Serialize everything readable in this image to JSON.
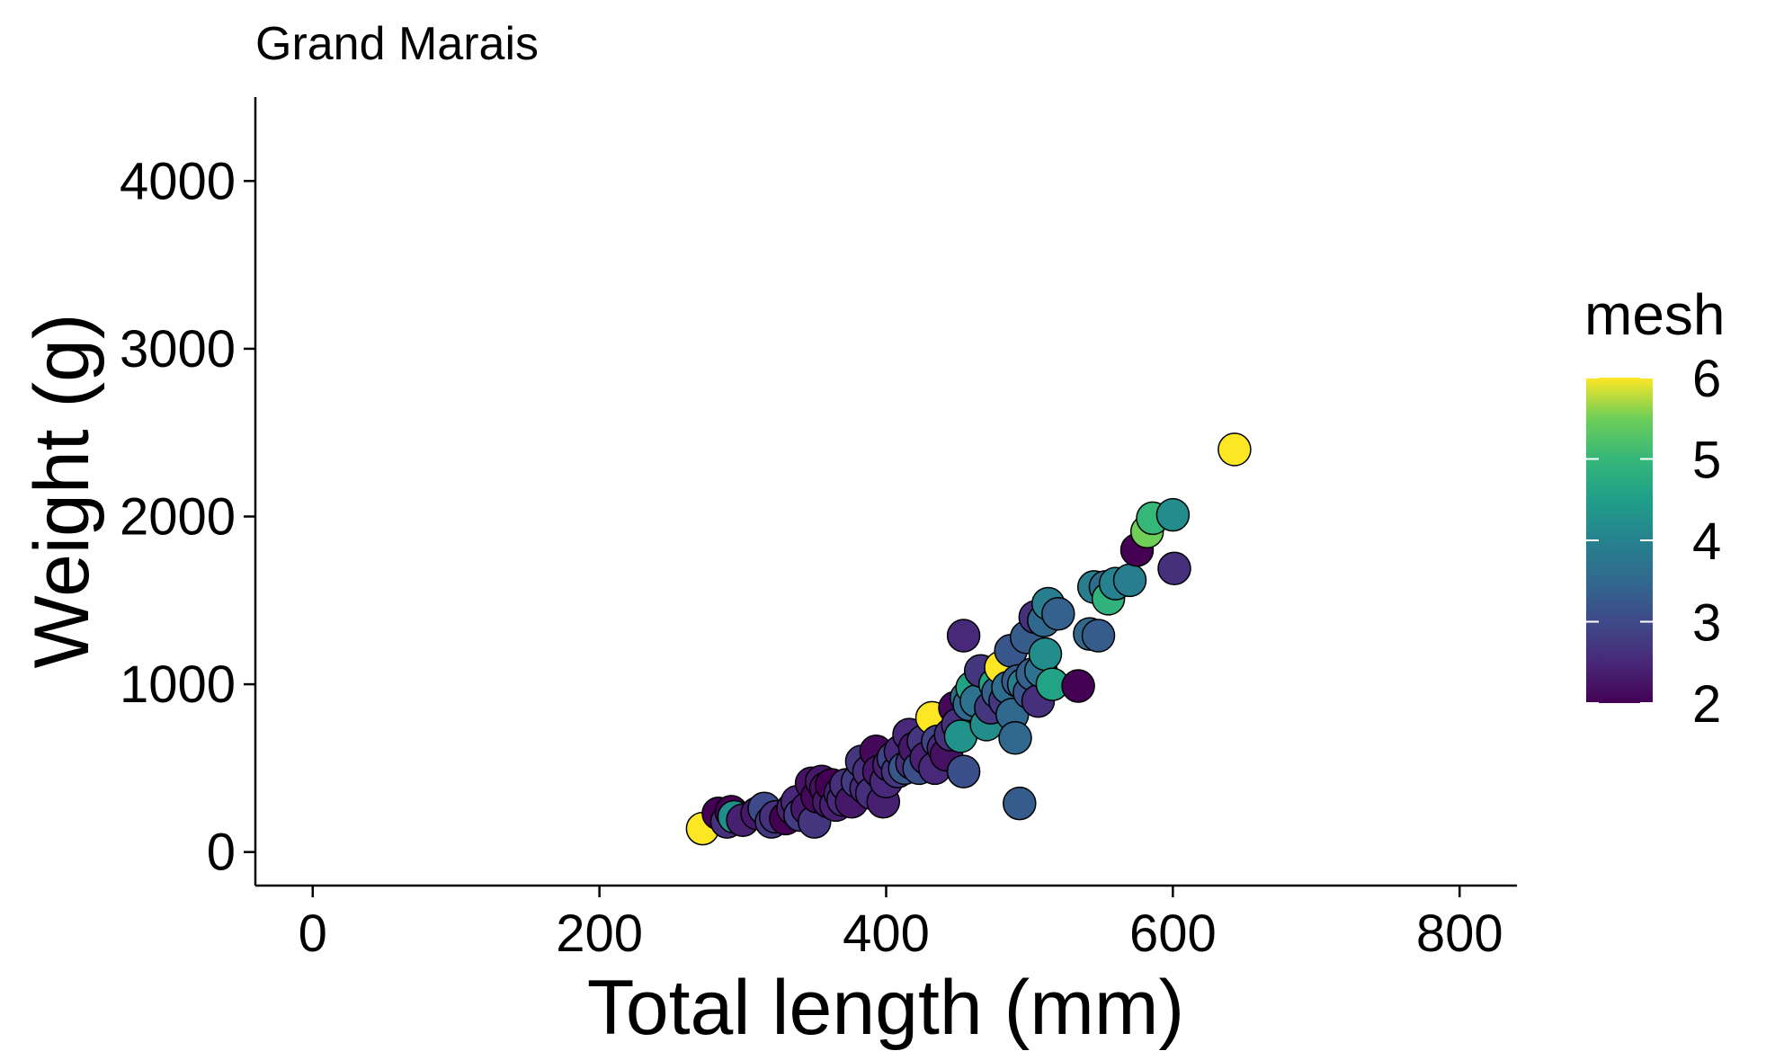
{
  "chart_data": {
    "type": "scatter",
    "title": "Grand Marais",
    "xlabel": "Total length (mm)",
    "ylabel": "Weight (g)",
    "xlim": [
      -40,
      840
    ],
    "ylim": [
      -200,
      4500
    ],
    "xticks": [
      0,
      200,
      400,
      600,
      800
    ],
    "xtick_labels": [
      "0",
      "200",
      "400",
      "600",
      "800"
    ],
    "yticks": [
      0,
      1000,
      2000,
      3000,
      4000
    ],
    "ytick_labels": [
      "0",
      "1000",
      "2000",
      "3000",
      "4000"
    ],
    "grid": false,
    "legend": {
      "title": "mesh",
      "position": "right",
      "type": "colorbar",
      "colormap": "viridis",
      "range": [
        2,
        6
      ],
      "ticks": [
        2,
        3,
        4,
        5,
        6
      ],
      "tick_labels": [
        "2",
        "3",
        "4",
        "5",
        "6"
      ]
    },
    "point_fields": [
      "x",
      "y",
      "mesh"
    ],
    "points": [
      [
        272,
        140,
        6
      ],
      [
        283,
        230,
        2
      ],
      [
        289,
        180,
        2.6
      ],
      [
        292,
        240,
        2
      ],
      [
        294,
        210,
        4.2
      ],
      [
        300,
        190,
        2.4
      ],
      [
        310,
        230,
        2.3
      ],
      [
        315,
        260,
        3
      ],
      [
        320,
        180,
        2.7
      ],
      [
        323,
        210,
        2.6
      ],
      [
        330,
        200,
        2
      ],
      [
        335,
        260,
        2.4
      ],
      [
        338,
        300,
        2.5
      ],
      [
        340,
        220,
        2.8
      ],
      [
        345,
        260,
        2.3
      ],
      [
        348,
        410,
        2.2
      ],
      [
        350,
        180,
        2.7
      ],
      [
        352,
        330,
        2.1
      ],
      [
        355,
        420,
        2.3
      ],
      [
        358,
        380,
        2.2
      ],
      [
        360,
        300,
        2.3
      ],
      [
        362,
        400,
        2
      ],
      [
        365,
        280,
        2.4
      ],
      [
        368,
        350,
        2.4
      ],
      [
        370,
        310,
        2.5
      ],
      [
        372,
        400,
        2.6
      ],
      [
        376,
        300,
        2.3
      ],
      [
        380,
        420,
        2.8
      ],
      [
        383,
        540,
        2.7
      ],
      [
        386,
        380,
        2.5
      ],
      [
        388,
        480,
        2.6
      ],
      [
        390,
        350,
        2.6
      ],
      [
        393,
        600,
        2.1
      ],
      [
        395,
        480,
        2.3
      ],
      [
        398,
        300,
        2.4
      ],
      [
        400,
        420,
        2.5
      ],
      [
        402,
        520,
        2.4
      ],
      [
        405,
        560,
        2.9
      ],
      [
        408,
        480,
        2.7
      ],
      [
        410,
        600,
        2.5
      ],
      [
        413,
        500,
        3.2
      ],
      [
        416,
        700,
        2.5
      ],
      [
        418,
        530,
        2.6
      ],
      [
        420,
        620,
        2.3
      ],
      [
        423,
        500,
        3.1
      ],
      [
        426,
        660,
        2.7
      ],
      [
        428,
        560,
        2.4
      ],
      [
        432,
        800,
        6
      ],
      [
        434,
        500,
        2.5
      ],
      [
        436,
        660,
        2.9
      ],
      [
        440,
        620,
        2.5
      ],
      [
        442,
        580,
        2.2
      ],
      [
        445,
        700,
        2.6
      ],
      [
        448,
        860,
        2.1
      ],
      [
        450,
        760,
        2.6
      ],
      [
        452,
        690,
        4.3
      ],
      [
        454,
        480,
        3.1
      ],
      [
        456,
        920,
        3.6
      ],
      [
        454,
        1290,
        2.5
      ],
      [
        458,
        880,
        3.5
      ],
      [
        460,
        980,
        4.6
      ],
      [
        463,
        900,
        3.7
      ],
      [
        466,
        1080,
        2.7
      ],
      [
        470,
        760,
        4.2
      ],
      [
        473,
        860,
        2.7
      ],
      [
        476,
        1000,
        4.6
      ],
      [
        478,
        950,
        3.4
      ],
      [
        480,
        1100,
        6
      ],
      [
        483,
        900,
        2.7
      ],
      [
        485,
        980,
        3.6
      ],
      [
        487,
        1200,
        3.2
      ],
      [
        488,
        820,
        3.5
      ],
      [
        490,
        680,
        3.5
      ],
      [
        492,
        1020,
        3.3
      ],
      [
        493,
        290,
        3.3
      ],
      [
        496,
        1000,
        3.9
      ],
      [
        498,
        1280,
        3.3
      ],
      [
        500,
        950,
        3.2
      ],
      [
        502,
        1060,
        3.4
      ],
      [
        504,
        1400,
        2.6
      ],
      [
        506,
        900,
        2.6
      ],
      [
        508,
        1080,
        3.7
      ],
      [
        510,
        1380,
        3.5
      ],
      [
        511,
        1180,
        4.2
      ],
      [
        513,
        1480,
        3.9
      ],
      [
        516,
        1000,
        4.6
      ],
      [
        520,
        1420,
        3.4
      ],
      [
        534,
        990,
        2
      ],
      [
        542,
        1300,
        3.5
      ],
      [
        545,
        1580,
        3.9
      ],
      [
        548,
        1290,
        3.3
      ],
      [
        553,
        1580,
        3.6
      ],
      [
        555,
        1510,
        4.9
      ],
      [
        560,
        1600,
        4
      ],
      [
        570,
        1620,
        3.9
      ],
      [
        575,
        1800,
        2
      ],
      [
        582,
        1910,
        5.5
      ],
      [
        586,
        1990,
        5
      ],
      [
        600,
        2010,
        4.2
      ],
      [
        601,
        1690,
        2.6
      ],
      [
        643,
        2400,
        6
      ]
    ]
  }
}
